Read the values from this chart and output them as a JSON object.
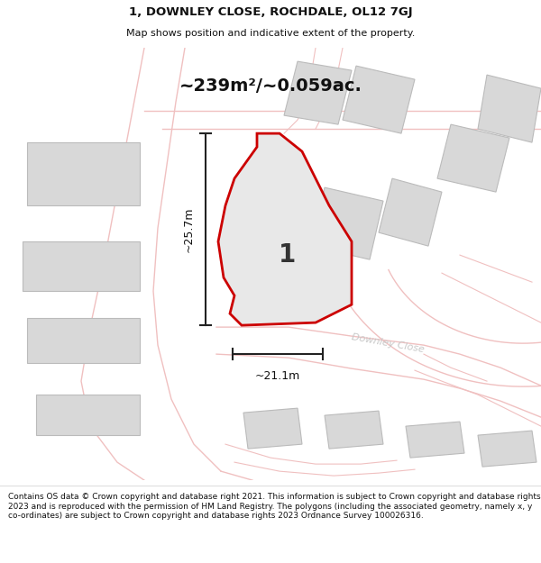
{
  "title_line1": "1, DOWNLEY CLOSE, ROCHDALE, OL12 7GJ",
  "title_line2": "Map shows position and indicative extent of the property.",
  "area_text": "~239m²/~0.059ac.",
  "dim_width": "~21.1m",
  "dim_height": "~25.7m",
  "plot_label": "1",
  "street_label": "Downley Close",
  "footer_text": "Contains OS data © Crown copyright and database right 2021. This information is subject to Crown copyright and database rights 2023 and is reproduced with the permission of HM Land Registry. The polygons (including the associated geometry, namely x, y co-ordinates) are subject to Crown copyright and database rights 2023 Ordnance Survey 100026316.",
  "bg_color": "#ffffff",
  "map_bg": "#ffffff",
  "plot_fill": "#e8e8e8",
  "plot_edge": "#cc0000",
  "road_outline": "#f0c0c0",
  "building_fill": "#d8d8d8",
  "building_edge": "#bbbbbb",
  "dim_color": "#222222",
  "title_color": "#111111",
  "footer_color": "#111111",
  "street_color": "#c8c8c8"
}
